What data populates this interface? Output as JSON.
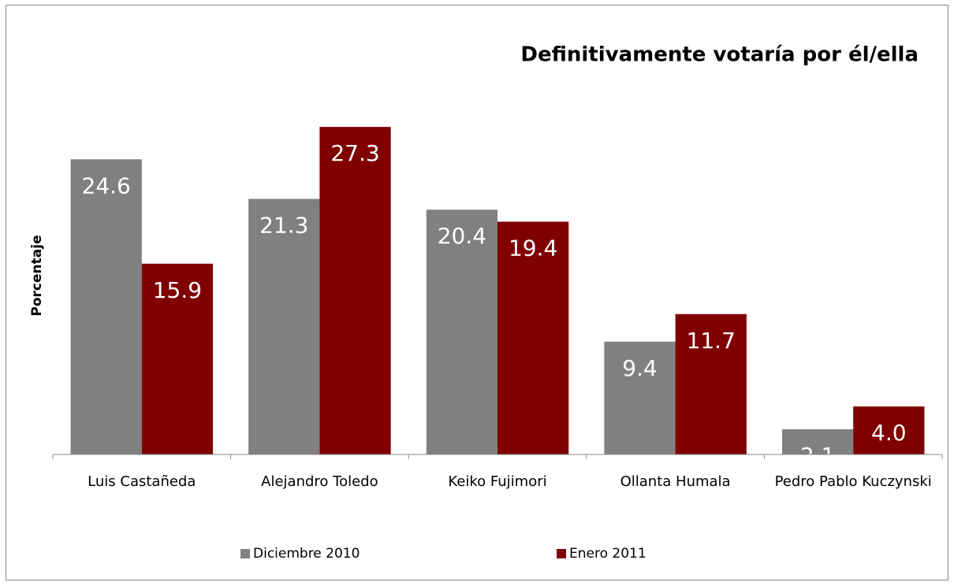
{
  "chart_data": {
    "type": "bar",
    "title": "Definitivamente votaría por él/ella",
    "y_label": "Porcentaje",
    "categories": [
      "Luis Castañeda",
      "Alejandro Toledo",
      "Keiko Fujimori",
      "Ollanta Humala",
      "Pedro Pablo Kuczynski"
    ],
    "series": [
      {
        "name": "Diciembre 2010",
        "color": "#808080",
        "values": [
          24.6,
          21.3,
          20.4,
          9.4,
          2.1
        ],
        "value_labels": [
          "24.6",
          "21.3",
          "20.4",
          "9.4",
          "2.1"
        ]
      },
      {
        "name": "Enero 2011",
        "color": "#800000",
        "values": [
          15.9,
          27.3,
          19.4,
          11.7,
          4.0
        ],
        "value_labels": [
          "15.9",
          "27.3",
          "19.4",
          "11.7",
          "4.0"
        ]
      }
    ],
    "ylim": [
      0,
      30
    ],
    "legend": "bottom"
  }
}
